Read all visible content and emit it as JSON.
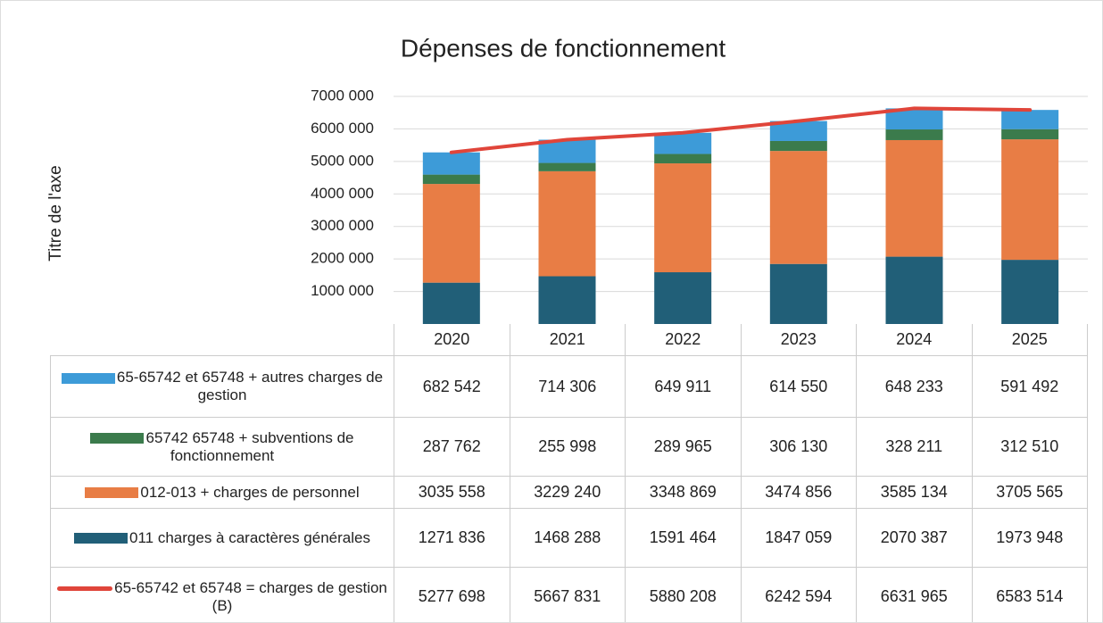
{
  "chart_data": {
    "type": "bar",
    "stacked": true,
    "title": "Dépenses de fonctionnement",
    "y_axis_label": "Titre de l'axe",
    "categories": [
      "2020",
      "2021",
      "2022",
      "2023",
      "2024",
      "2025"
    ],
    "ylim": [
      0,
      7000000
    ],
    "yticks": [
      {
        "value": 1000000,
        "label": "1000 000"
      },
      {
        "value": 2000000,
        "label": "2000 000"
      },
      {
        "value": 3000000,
        "label": "3000 000"
      },
      {
        "value": 4000000,
        "label": "4000 000"
      },
      {
        "value": 5000000,
        "label": "5000 000"
      },
      {
        "value": 6000000,
        "label": "6000 000"
      },
      {
        "value": 7000000,
        "label": "7000 000"
      }
    ],
    "grid": true,
    "series": [
      {
        "name": "65-65742 et 65748 + autres charges de gestion",
        "color": "#3d9bd8",
        "values": [
          682542,
          714306,
          649911,
          614550,
          648233,
          591492
        ],
        "value_labels": [
          "682 542",
          "714 306",
          "649 911",
          "614 550",
          "648 233",
          "591 492"
        ]
      },
      {
        "name": "65742 65748 + subventions de fonctionnement",
        "color": "#3b7b4c",
        "values": [
          287762,
          255998,
          289965,
          306130,
          328211,
          312510
        ],
        "value_labels": [
          "287 762",
          "255 998",
          "289 965",
          "306 130",
          "328 211",
          "312 510"
        ]
      },
      {
        "name": "012-013 + charges de personnel",
        "color": "#e87d45",
        "values": [
          3035558,
          3229240,
          3348869,
          3474856,
          3585134,
          3705565
        ],
        "value_labels": [
          "3035 558",
          "3229 240",
          "3348 869",
          "3474 856",
          "3585 134",
          "3705 565"
        ]
      },
      {
        "name": "011 charges à caractères générales",
        "color": "#215f78",
        "values": [
          1271836,
          1468288,
          1591464,
          1847059,
          2070387,
          1973948
        ],
        "value_labels": [
          "1271 836",
          "1468 288",
          "1591 464",
          "1847 059",
          "2070 387",
          "1973 948"
        ]
      },
      {
        "name": "65-65742 et 65748 = charges de gestion (B)",
        "color": "#e0453a",
        "type": "line",
        "values": [
          5277698,
          5667831,
          5880208,
          6242594,
          6631965,
          6583514
        ],
        "value_labels": [
          "5277 698",
          "5667 831",
          "5880 208",
          "6242 594",
          "6631 965",
          "6583 514"
        ]
      }
    ]
  }
}
